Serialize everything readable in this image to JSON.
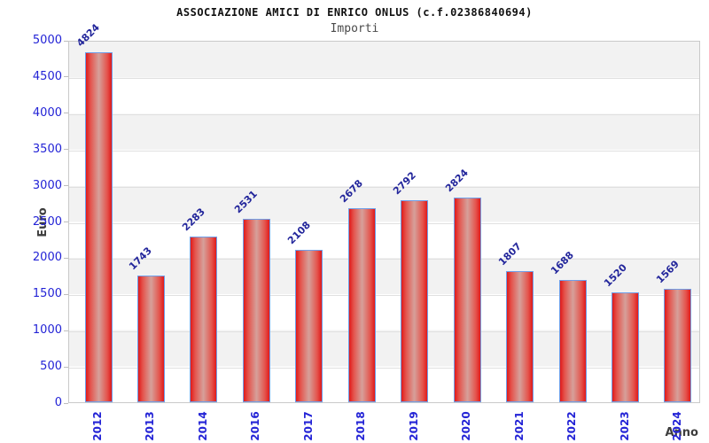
{
  "chart_data": {
    "type": "bar",
    "title": "ASSOCIAZIONE AMICI DI ENRICO ONLUS (c.f.02386840694)",
    "subtitle": "Importi",
    "xlabel": "Anno",
    "ylabel": "Euro",
    "categories": [
      "2012",
      "2013",
      "2014",
      "2016",
      "2017",
      "2018",
      "2019",
      "2020",
      "2021",
      "2022",
      "2023",
      "2024"
    ],
    "values": [
      4824,
      1743,
      2283,
      2531,
      2108,
      2678,
      2792,
      2824,
      1807,
      1688,
      1520,
      1569
    ],
    "ylim": [
      0,
      5000
    ],
    "yticks": [
      0,
      500,
      1000,
      1500,
      2000,
      2500,
      3000,
      3500,
      4000,
      4500,
      5000
    ],
    "grid": "horizontal-bands",
    "legend": "none",
    "colors": {
      "bar_fill_edge": "#e01a1a",
      "bar_fill_center": "#d6a09a",
      "bar_border": "#6f9ee8",
      "axis_tick_label": "#2323d6",
      "value_label": "#22259b",
      "axis_title": "#3d3d3d",
      "band_gray": "#f2f2f2",
      "band_white": "#ffffff",
      "plot_border": "#c9c9c9"
    }
  }
}
